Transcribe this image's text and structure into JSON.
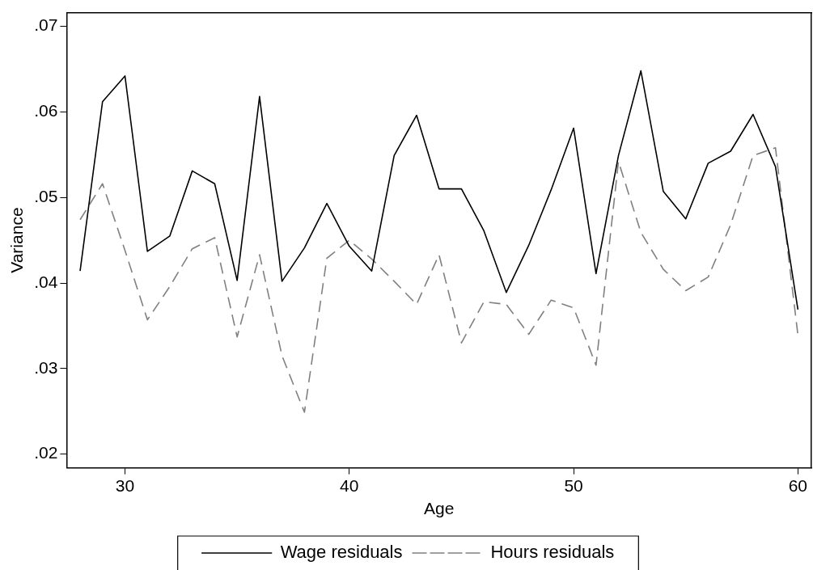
{
  "chart_data": {
    "type": "line",
    "xlabel": "Age",
    "ylabel": "Variance",
    "x": [
      28,
      29,
      30,
      31,
      32,
      33,
      34,
      35,
      36,
      37,
      38,
      39,
      40,
      41,
      42,
      43,
      44,
      45,
      46,
      47,
      48,
      49,
      50,
      51,
      52,
      53,
      54,
      55,
      56,
      57,
      58,
      59,
      60
    ],
    "series": [
      {
        "name": "Wage residuals",
        "color": "#000000",
        "line_style": "solid",
        "values": [
          0.0414,
          0.0612,
          0.0642,
          0.0437,
          0.0455,
          0.0531,
          0.0516,
          0.0403,
          0.0618,
          0.0402,
          0.0441,
          0.0493,
          0.0443,
          0.0414,
          0.0549,
          0.0596,
          0.051,
          0.051,
          0.0461,
          0.0389,
          0.0444,
          0.0509,
          0.0581,
          0.0411,
          0.0549,
          0.0648,
          0.0507,
          0.0475,
          0.054,
          0.0554,
          0.0597,
          0.0536,
          0.0369
        ]
      },
      {
        "name": "Hours residuals",
        "color": "#808080",
        "line_style": "dashed",
        "values": [
          0.0474,
          0.0516,
          0.0438,
          0.0357,
          0.0396,
          0.044,
          0.0453,
          0.0337,
          0.0433,
          0.0315,
          0.0249,
          0.0429,
          0.045,
          0.0428,
          0.0402,
          0.0375,
          0.0433,
          0.033,
          0.0378,
          0.0375,
          0.034,
          0.038,
          0.0371,
          0.0304,
          0.0542,
          0.0459,
          0.0416,
          0.0391,
          0.0407,
          0.0468,
          0.0549,
          0.0558,
          0.0339
        ]
      }
    ],
    "xlim": [
      27.4,
      60.6
    ],
    "xticks": [
      30,
      40,
      50,
      60
    ],
    "ylim": [
      0.0184,
      0.0716
    ],
    "yticks": [
      {
        "value": 0.02,
        "label": ".02"
      },
      {
        "value": 0.03,
        "label": ".03"
      },
      {
        "value": 0.04,
        "label": ".04"
      },
      {
        "value": 0.05,
        "label": ".05"
      },
      {
        "value": 0.06,
        "label": ".06"
      },
      {
        "value": 0.07,
        "label": ".07"
      }
    ],
    "grid": false,
    "legend": "bottom",
    "marker": "none"
  }
}
